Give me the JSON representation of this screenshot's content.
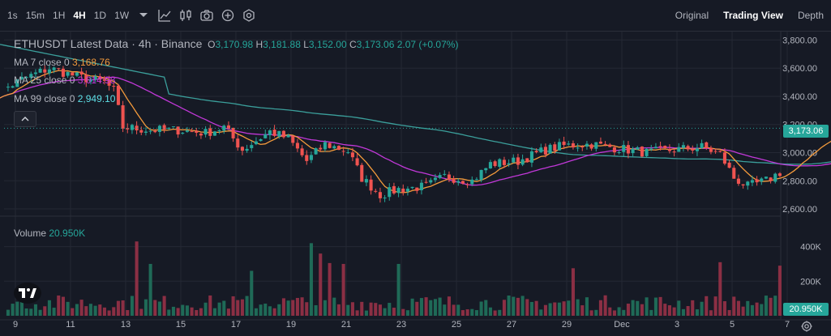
{
  "toolbar": {
    "intervals": [
      {
        "label": "1s",
        "active": false
      },
      {
        "label": "15m",
        "active": false
      },
      {
        "label": "1H",
        "active": false
      },
      {
        "label": "4H",
        "active": true
      },
      {
        "label": "1D",
        "active": false
      },
      {
        "label": "1W",
        "active": false
      }
    ],
    "icons": [
      "chevron-down-icon",
      "indicator-icon",
      "candles-icon",
      "camera-icon",
      "plus-circle-icon",
      "gear-icon"
    ],
    "views": [
      {
        "label": "Original",
        "active": false
      },
      {
        "label": "Trading View",
        "active": true
      },
      {
        "label": "Depth",
        "active": false
      }
    ]
  },
  "legend": {
    "title": "ETHUSDT Latest Data · 4h · Binance",
    "open_label": "O",
    "open": "3,170.98",
    "high_label": "H",
    "high": "3,181.88",
    "low_label": "L",
    "low": "3,152.00",
    "close_label": "C",
    "close": "3,173.06",
    "change": "2.07 (+0.07%)",
    "ma7_label": "MA 7 close 0",
    "ma7_value": "3,168.76",
    "ma25_label": "MA 25 close 0",
    "ma25_value": "3,014.98",
    "ma99_label": "MA 99 close 0",
    "ma99_value": "2,949.10",
    "volume_label": "Volume",
    "volume_value": "20.950K"
  },
  "colors": {
    "background": "#161a25",
    "up": "#26a69a",
    "down": "#ef5350",
    "up_volume": "#1f6a57",
    "down_volume": "#8b2f44",
    "ma7": "#f59b3c",
    "ma25": "#c238d9",
    "ma99": "#3b9f9b",
    "last_price": "#26a69a"
  },
  "price_axis": {
    "ticks": [
      "3,800.00",
      "3,600.00",
      "3,400.00",
      "3,200.00",
      "3,000.00",
      "2,800.00",
      "2,600.00"
    ],
    "last_price_label": "3,173.06"
  },
  "volume_axis": {
    "ticks": [
      "400K",
      "200K"
    ],
    "last_volume_label": "20.950K"
  },
  "time_axis": {
    "labels": [
      "9",
      "11",
      "13",
      "15",
      "17",
      "19",
      "21",
      "23",
      "25",
      "27",
      "29",
      "Dec",
      "3",
      "5",
      "7"
    ]
  },
  "chart_data": {
    "type": "candlestick",
    "symbol": "ETHUSDT",
    "interval": "4h",
    "ylim": [
      2560,
      3860
    ],
    "candles_per_day": 6,
    "start_day_index": -1.1,
    "anchors": [
      [
        0,
        3360
      ],
      [
        3,
        3430
      ],
      [
        8,
        3520
      ],
      [
        14,
        3600
      ],
      [
        20,
        3540
      ],
      [
        26,
        3500
      ],
      [
        28,
        3440
      ],
      [
        30,
        3180
      ],
      [
        36,
        3160
      ],
      [
        42,
        3160
      ],
      [
        48,
        3140
      ],
      [
        52,
        3180
      ],
      [
        56,
        3020
      ],
      [
        62,
        3150
      ],
      [
        66,
        3100
      ],
      [
        70,
        2940
      ],
      [
        74,
        3060
      ],
      [
        79,
        3010
      ],
      [
        82,
        2820
      ],
      [
        86,
        2700
      ],
      [
        90,
        2740
      ],
      [
        96,
        2760
      ],
      [
        100,
        2830
      ],
      [
        106,
        2800
      ],
      [
        110,
        2920
      ],
      [
        116,
        2940
      ],
      [
        122,
        3020
      ],
      [
        126,
        3050
      ],
      [
        132,
        3060
      ],
      [
        138,
        3030
      ],
      [
        144,
        3000
      ],
      [
        150,
        3020
      ],
      [
        156,
        3040
      ],
      [
        160,
        2990
      ],
      [
        163,
        2820
      ],
      [
        166,
        2760
      ],
      [
        170,
        2800
      ],
      [
        174,
        2880
      ],
      [
        178,
        3020
      ],
      [
        182,
        3100
      ],
      [
        186,
        3200
      ],
      [
        190,
        3170
      ],
      [
        192,
        3173
      ]
    ],
    "volume_peaks": [
      [
        33,
        430000
      ],
      [
        36,
        300000
      ],
      [
        58,
        260000
      ],
      [
        71,
        420000
      ],
      [
        73,
        360000
      ],
      [
        75,
        305000
      ],
      [
        78,
        300000
      ],
      [
        90,
        300000
      ],
      [
        128,
        275000
      ],
      [
        160,
        310000
      ],
      [
        173,
        290000
      ],
      [
        178,
        210000
      ]
    ],
    "volume_ylim": [
      0,
      520000
    ],
    "last_price": 3173.06,
    "last_volume": 20950
  }
}
